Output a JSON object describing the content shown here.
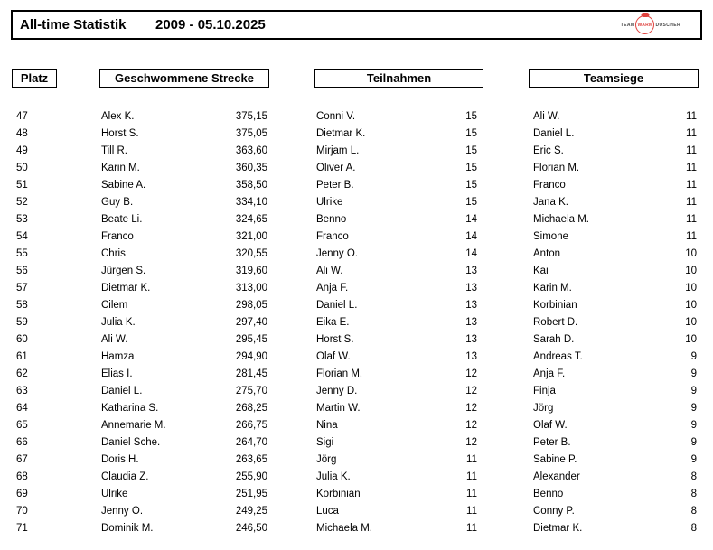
{
  "header": {
    "title": "All-time Statistik",
    "date_range": "2009 - 05.10.2025",
    "logo": {
      "team": "TEAM",
      "warm": "WARM",
      "duscher": "DUSCHER",
      "accent_color": "#e0423e"
    }
  },
  "column_headers": {
    "platz": "Platz",
    "strecke": "Geschwommene Strecke",
    "teilnahmen": "Teilnahmen",
    "teamsiege": "Teamsiege"
  },
  "rows": [
    {
      "platz": "47",
      "strecke_name": "Alex K.",
      "strecke_value": "375,15",
      "teilnahmen_name": "Conni V.",
      "teilnahmen_value": "15",
      "teamsiege_name": "Ali W.",
      "teamsiege_value": "11"
    },
    {
      "platz": "48",
      "strecke_name": "Horst S.",
      "strecke_value": "375,05",
      "teilnahmen_name": "Dietmar K.",
      "teilnahmen_value": "15",
      "teamsiege_name": "Daniel L.",
      "teamsiege_value": "11"
    },
    {
      "platz": "49",
      "strecke_name": "Till R.",
      "strecke_value": "363,60",
      "teilnahmen_name": "Mirjam L.",
      "teilnahmen_value": "15",
      "teamsiege_name": "Eric S.",
      "teamsiege_value": "11"
    },
    {
      "platz": "50",
      "strecke_name": "Karin M.",
      "strecke_value": "360,35",
      "teilnahmen_name": "Oliver A.",
      "teilnahmen_value": "15",
      "teamsiege_name": "Florian M.",
      "teamsiege_value": "11"
    },
    {
      "platz": "51",
      "strecke_name": "Sabine A.",
      "strecke_value": "358,50",
      "teilnahmen_name": "Peter B.",
      "teilnahmen_value": "15",
      "teamsiege_name": "Franco",
      "teamsiege_value": "11"
    },
    {
      "platz": "52",
      "strecke_name": "Guy B.",
      "strecke_value": "334,10",
      "teilnahmen_name": "Ulrike",
      "teilnahmen_value": "15",
      "teamsiege_name": "Jana K.",
      "teamsiege_value": "11"
    },
    {
      "platz": "53",
      "strecke_name": "Beate Li.",
      "strecke_value": "324,65",
      "teilnahmen_name": "Benno",
      "teilnahmen_value": "14",
      "teamsiege_name": "Michaela M.",
      "teamsiege_value": "11"
    },
    {
      "platz": "54",
      "strecke_name": "Franco",
      "strecke_value": "321,00",
      "teilnahmen_name": "Franco",
      "teilnahmen_value": "14",
      "teamsiege_name": "Simone",
      "teamsiege_value": "11"
    },
    {
      "platz": "55",
      "strecke_name": "Chris",
      "strecke_value": "320,55",
      "teilnahmen_name": "Jenny O.",
      "teilnahmen_value": "14",
      "teamsiege_name": "Anton",
      "teamsiege_value": "10"
    },
    {
      "platz": "56",
      "strecke_name": "Jürgen S.",
      "strecke_value": "319,60",
      "teilnahmen_name": "Ali W.",
      "teilnahmen_value": "13",
      "teamsiege_name": "Kai",
      "teamsiege_value": "10"
    },
    {
      "platz": "57",
      "strecke_name": "Dietmar K.",
      "strecke_value": "313,00",
      "teilnahmen_name": "Anja F.",
      "teilnahmen_value": "13",
      "teamsiege_name": "Karin M.",
      "teamsiege_value": "10"
    },
    {
      "platz": "58",
      "strecke_name": "Cilem",
      "strecke_value": "298,05",
      "teilnahmen_name": "Daniel L.",
      "teilnahmen_value": "13",
      "teamsiege_name": "Korbinian",
      "teamsiege_value": "10"
    },
    {
      "platz": "59",
      "strecke_name": "Julia K.",
      "strecke_value": "297,40",
      "teilnahmen_name": "Eika E.",
      "teilnahmen_value": "13",
      "teamsiege_name": "Robert D.",
      "teamsiege_value": "10"
    },
    {
      "platz": "60",
      "strecke_name": "Ali W.",
      "strecke_value": "295,45",
      "teilnahmen_name": "Horst S.",
      "teilnahmen_value": "13",
      "teamsiege_name": "Sarah D.",
      "teamsiege_value": "10"
    },
    {
      "platz": "61",
      "strecke_name": "Hamza",
      "strecke_value": "294,90",
      "teilnahmen_name": "Olaf W.",
      "teilnahmen_value": "13",
      "teamsiege_name": "Andreas T.",
      "teamsiege_value": "9"
    },
    {
      "platz": "62",
      "strecke_name": "Elias I.",
      "strecke_value": "281,45",
      "teilnahmen_name": "Florian M.",
      "teilnahmen_value": "12",
      "teamsiege_name": "Anja F.",
      "teamsiege_value": "9"
    },
    {
      "platz": "63",
      "strecke_name": "Daniel L.",
      "strecke_value": "275,70",
      "teilnahmen_name": "Jenny D.",
      "teilnahmen_value": "12",
      "teamsiege_name": "Finja",
      "teamsiege_value": "9"
    },
    {
      "platz": "64",
      "strecke_name": "Katharina S.",
      "strecke_value": "268,25",
      "teilnahmen_name": "Martin W.",
      "teilnahmen_value": "12",
      "teamsiege_name": "Jörg",
      "teamsiege_value": "9"
    },
    {
      "platz": "65",
      "strecke_name": "Annemarie M.",
      "strecke_value": "266,75",
      "teilnahmen_name": "Nina",
      "teilnahmen_value": "12",
      "teamsiege_name": "Olaf W.",
      "teamsiege_value": "9"
    },
    {
      "platz": "66",
      "strecke_name": "Daniel Sche.",
      "strecke_value": "264,70",
      "teilnahmen_name": "Sigi",
      "teilnahmen_value": "12",
      "teamsiege_name": "Peter B.",
      "teamsiege_value": "9"
    },
    {
      "platz": "67",
      "strecke_name": "Doris H.",
      "strecke_value": "263,65",
      "teilnahmen_name": "Jörg",
      "teilnahmen_value": "11",
      "teamsiege_name": "Sabine P.",
      "teamsiege_value": "9"
    },
    {
      "platz": "68",
      "strecke_name": "Claudia Z.",
      "strecke_value": "255,90",
      "teilnahmen_name": "Julia K.",
      "teilnahmen_value": "11",
      "teamsiege_name": "Alexander",
      "teamsiege_value": "8"
    },
    {
      "platz": "69",
      "strecke_name": "Ulrike",
      "strecke_value": "251,95",
      "teilnahmen_name": "Korbinian",
      "teilnahmen_value": "11",
      "teamsiege_name": "Benno",
      "teamsiege_value": "8"
    },
    {
      "platz": "70",
      "strecke_name": "Jenny O.",
      "strecke_value": "249,25",
      "teilnahmen_name": "Luca",
      "teilnahmen_value": "11",
      "teamsiege_name": "Conny P.",
      "teamsiege_value": "8"
    },
    {
      "platz": "71",
      "strecke_name": "Dominik M.",
      "strecke_value": "246,50",
      "teilnahmen_name": "Michaela M.",
      "teilnahmen_value": "11",
      "teamsiege_name": "Dietmar K.",
      "teamsiege_value": "8"
    }
  ]
}
